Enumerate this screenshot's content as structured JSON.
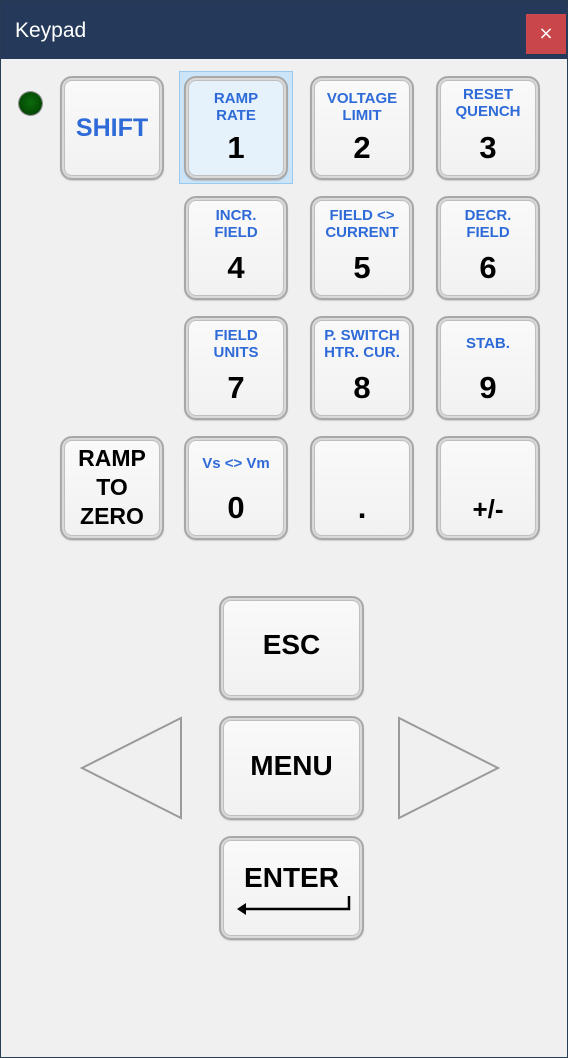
{
  "window": {
    "title": "Keypad",
    "close_label": "×"
  },
  "keys": {
    "shift": "SHIFT",
    "k1": {
      "sub1": "RAMP",
      "sub2": "RATE",
      "num": "1"
    },
    "k2": {
      "sub1": "VOLTAGE",
      "sub2": "LIMIT",
      "num": "2"
    },
    "k3": {
      "sub1": "RESET",
      "sub2": "QUENCH",
      "num": "3"
    },
    "k4": {
      "sub1": "INCR.",
      "sub2": "FIELD",
      "num": "4"
    },
    "k5": {
      "sub1": "FIELD <>",
      "sub2": "CURRENT",
      "num": "5"
    },
    "k6": {
      "sub1": "DECR.",
      "sub2": "FIELD",
      "num": "6"
    },
    "k7": {
      "sub1": "FIELD",
      "sub2": "UNITS",
      "num": "7"
    },
    "k8": {
      "sub1": "P. SWITCH",
      "sub2": "HTR. CUR.",
      "num": "8"
    },
    "k9": {
      "sub1": "STAB.",
      "num": "9"
    },
    "ramp_to_zero": {
      "l1": "RAMP",
      "l2": "TO",
      "l3": "ZERO"
    },
    "k0": {
      "sub1": "Vs <> Vm",
      "num": "0"
    },
    "dot": ".",
    "plusminus": "+/-",
    "esc": "ESC",
    "menu": "MENU",
    "enter": "ENTER"
  },
  "colors": {
    "titlebar": "#253a5a",
    "close": "#c9474b",
    "label_blue": "#2f6bd8",
    "led": "#0b6b0b"
  }
}
